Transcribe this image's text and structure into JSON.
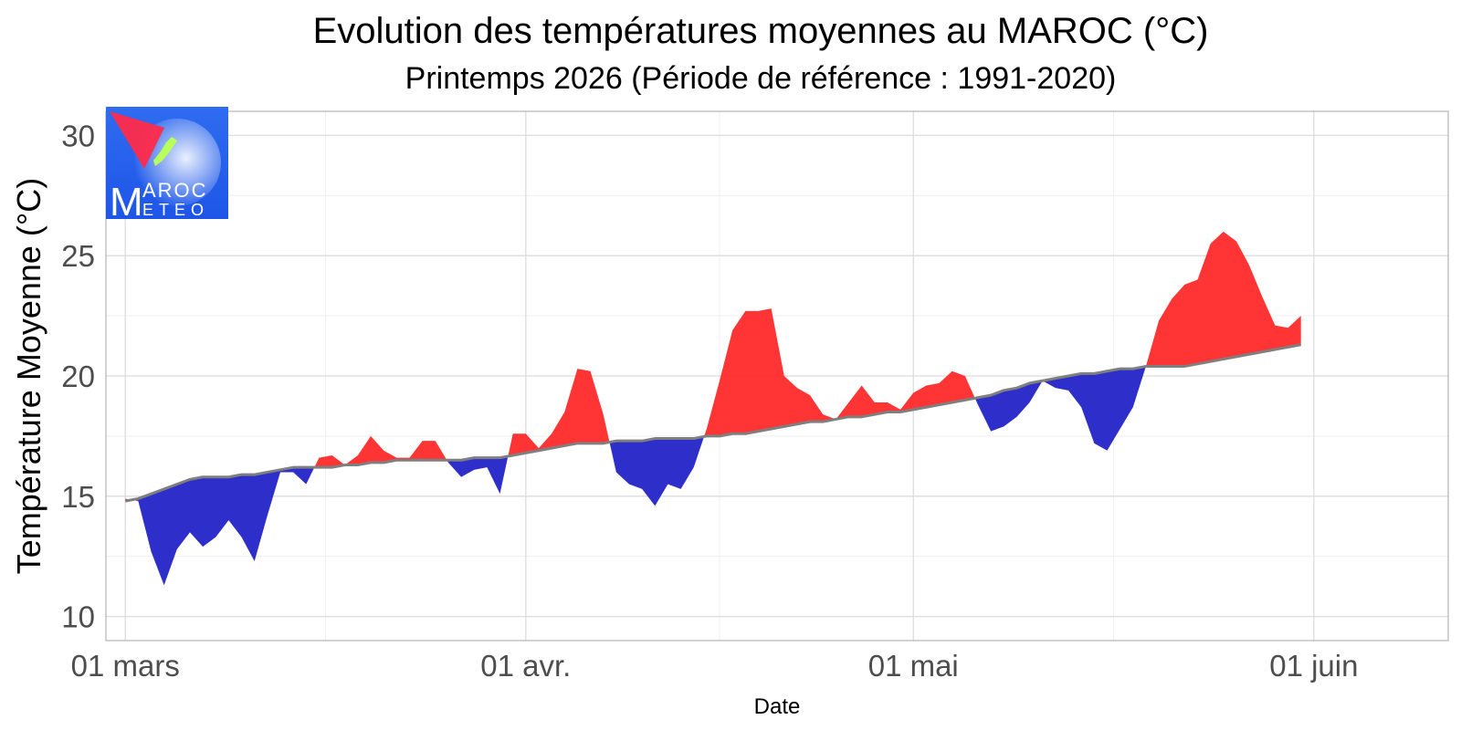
{
  "chart_data": {
    "type": "area",
    "title": "Evolution des températures moyennes au MAROC (°C)",
    "subtitle": "Printemps 2026 (Période de référence : 1991-2020)",
    "xlabel": "Date",
    "ylabel": "Température Moyenne (°C)",
    "ylim": [
      9,
      31
    ],
    "y_ticks": [
      10,
      15,
      20,
      25,
      30
    ],
    "x_ticks": [
      "01 mars",
      "01 avr.",
      "01 mai",
      "01 juin"
    ],
    "grid": true,
    "colors": {
      "above_normal": "#ff2a2a",
      "below_normal": "#2323c8",
      "normal_line": "#7f7f7f",
      "grid_major": "#dcdcdc",
      "grid_minor": "#efefef",
      "panel_border": "#b3b3b3"
    },
    "x": [
      "2026-03-01",
      "2026-03-02",
      "2026-03-03",
      "2026-03-04",
      "2026-03-05",
      "2026-03-06",
      "2026-03-07",
      "2026-03-08",
      "2026-03-09",
      "2026-03-10",
      "2026-03-11",
      "2026-03-12",
      "2026-03-13",
      "2026-03-14",
      "2026-03-15",
      "2026-03-16",
      "2026-03-17",
      "2026-03-18",
      "2026-03-19",
      "2026-03-20",
      "2026-03-21",
      "2026-03-22",
      "2026-03-23",
      "2026-03-24",
      "2026-03-25",
      "2026-03-26",
      "2026-03-27",
      "2026-03-28",
      "2026-03-29",
      "2026-03-30",
      "2026-03-31",
      "2026-04-01",
      "2026-04-02",
      "2026-04-03",
      "2026-04-04",
      "2026-04-05",
      "2026-04-06",
      "2026-04-07",
      "2026-04-08",
      "2026-04-09",
      "2026-04-10",
      "2026-04-11",
      "2026-04-12",
      "2026-04-13",
      "2026-04-14",
      "2026-04-15",
      "2026-04-16",
      "2026-04-17",
      "2026-04-18",
      "2026-04-19",
      "2026-04-20",
      "2026-04-21",
      "2026-04-22",
      "2026-04-23",
      "2026-04-24",
      "2026-04-25",
      "2026-04-26",
      "2026-04-27",
      "2026-04-28",
      "2026-04-29",
      "2026-04-30",
      "2026-05-01",
      "2026-05-02",
      "2026-05-03",
      "2026-05-04",
      "2026-05-05",
      "2026-05-06",
      "2026-05-07",
      "2026-05-08",
      "2026-05-09",
      "2026-05-10",
      "2026-05-11",
      "2026-05-12",
      "2026-05-13",
      "2026-05-14",
      "2026-05-15",
      "2026-05-16",
      "2026-05-17",
      "2026-05-18",
      "2026-05-19",
      "2026-05-20",
      "2026-05-21",
      "2026-05-22",
      "2026-05-23",
      "2026-05-24",
      "2026-05-25",
      "2026-05-26",
      "2026-05-27",
      "2026-05-28",
      "2026-05-29",
      "2026-05-30",
      "2026-05-31"
    ],
    "series": [
      {
        "values": [
          14.9,
          14.8,
          12.7,
          11.3,
          12.8,
          13.5,
          12.9,
          13.3,
          14.0,
          13.3,
          12.3,
          14.2,
          16.0,
          16.0,
          15.5,
          16.6,
          16.7,
          16.3,
          16.7,
          17.5,
          16.9,
          16.6,
          16.6,
          17.3,
          17.3,
          16.4,
          15.8,
          16.1,
          16.2,
          15.1,
          17.6,
          17.6,
          17.0,
          17.6,
          18.5,
          20.3,
          20.2,
          18.4,
          16.0,
          15.5,
          15.3,
          14.6,
          15.5,
          15.3,
          16.2,
          17.8,
          19.8,
          21.9,
          22.7,
          22.7,
          22.8,
          20.0,
          19.5,
          19.2,
          18.4,
          18.2,
          18.9,
          19.6,
          18.9,
          18.9,
          18.6,
          19.3,
          19.6,
          19.7,
          20.2,
          20.0,
          18.8,
          17.7,
          17.9,
          18.3,
          18.9,
          19.8,
          19.5,
          19.4,
          18.7,
          17.2,
          16.9,
          17.8,
          18.7,
          20.4,
          22.3,
          23.2,
          23.8,
          24.0,
          25.5,
          26.0,
          25.6,
          24.6,
          23.3,
          22.1,
          22.0,
          22.5
        ]
      },
      {
        "values": [
          14.8,
          14.9,
          15.1,
          15.3,
          15.5,
          15.7,
          15.8,
          15.8,
          15.8,
          15.9,
          15.9,
          16.0,
          16.1,
          16.2,
          16.2,
          16.2,
          16.2,
          16.3,
          16.3,
          16.4,
          16.4,
          16.5,
          16.5,
          16.5,
          16.5,
          16.5,
          16.5,
          16.6,
          16.6,
          16.6,
          16.7,
          16.8,
          16.9,
          17.0,
          17.1,
          17.2,
          17.2,
          17.2,
          17.3,
          17.3,
          17.3,
          17.4,
          17.4,
          17.4,
          17.4,
          17.5,
          17.5,
          17.6,
          17.6,
          17.7,
          17.8,
          17.9,
          18.0,
          18.1,
          18.1,
          18.2,
          18.3,
          18.3,
          18.4,
          18.5,
          18.5,
          18.6,
          18.7,
          18.8,
          18.9,
          19.0,
          19.1,
          19.2,
          19.4,
          19.5,
          19.7,
          19.8,
          19.9,
          20.0,
          20.1,
          20.1,
          20.2,
          20.3,
          20.3,
          20.4,
          20.4,
          20.4,
          20.4,
          20.5,
          20.6,
          20.7,
          20.8,
          20.9,
          21.0,
          21.1,
          21.2,
          21.3
        ]
      }
    ]
  },
  "logo": {
    "brand": "MAROC METEO"
  }
}
